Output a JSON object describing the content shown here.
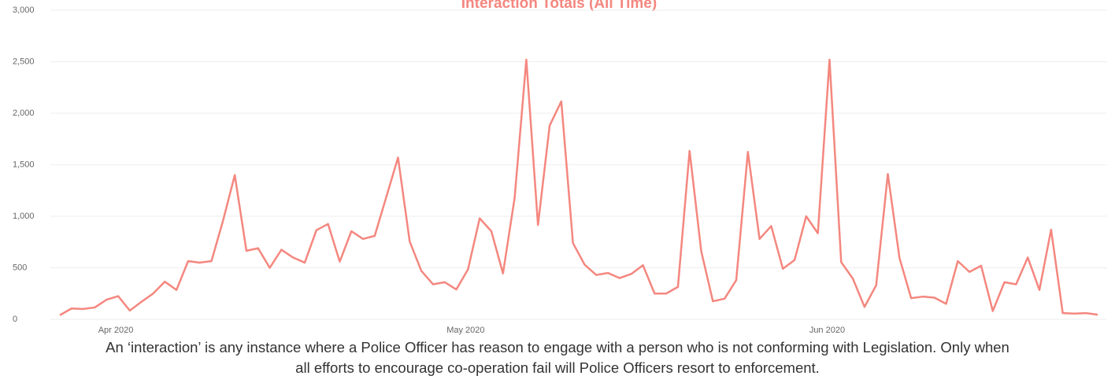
{
  "chart_data": {
    "type": "line",
    "title": "Interaction Totals (All Time)",
    "categories": [
      null,
      null,
      null,
      null,
      null,
      "Apr 2020",
      null,
      null,
      null,
      null,
      null,
      null,
      null,
      null,
      null,
      null,
      null,
      null,
      null,
      null,
      null,
      null,
      null,
      null,
      null,
      null,
      null,
      null,
      null,
      null,
      null,
      null,
      null,
      null,
      null,
      "May 2020",
      null,
      null,
      null,
      null,
      null,
      null,
      null,
      null,
      null,
      null,
      null,
      null,
      null,
      null,
      null,
      null,
      null,
      null,
      null,
      null,
      null,
      null,
      null,
      null,
      null,
      null,
      null,
      null,
      null,
      null,
      "Jun 2020",
      null,
      null,
      null,
      null,
      null,
      null,
      null,
      null,
      null,
      null,
      null,
      null,
      null,
      null,
      null,
      null,
      null,
      null,
      null,
      null,
      null,
      null,
      null
    ],
    "values": [
      40,
      105,
      100,
      115,
      190,
      225,
      85,
      170,
      250,
      365,
      285,
      565,
      550,
      565,
      960,
      1400,
      665,
      690,
      500,
      675,
      600,
      550,
      865,
      925,
      560,
      855,
      780,
      810,
      1190,
      1570,
      755,
      470,
      340,
      360,
      290,
      485,
      980,
      855,
      445,
      1180,
      2520,
      915,
      1880,
      2115,
      740,
      530,
      430,
      450,
      400,
      440,
      525,
      250,
      250,
      315,
      1635,
      660,
      175,
      200,
      380,
      1625,
      780,
      905,
      490,
      575,
      1000,
      835,
      2520,
      555,
      395,
      120,
      330,
      1410,
      595,
      205,
      220,
      210,
      150,
      565,
      460,
      520,
      80,
      360,
      340,
      600,
      285,
      870,
      60,
      55,
      60,
      45
    ],
    "color": "#f4877f",
    "ylim": [
      0,
      3000
    ],
    "yticks": [
      0,
      500,
      {
        "value": 1000,
        "label": "1,000"
      },
      {
        "value": 1500,
        "label": "1,500"
      },
      {
        "value": 2000,
        "label": "2,000"
      },
      {
        "value": 2500,
        "label": "2,500"
      },
      {
        "value": 3000,
        "label": "3,000"
      }
    ],
    "grid": true
  },
  "footnote": [
    "An ‘interaction’ is any instance where a Police Officer has reason to engage with a person who is not conforming with Legislation. Only when",
    "all efforts to encourage co-operation fail will Police Officers resort to enforcement."
  ]
}
